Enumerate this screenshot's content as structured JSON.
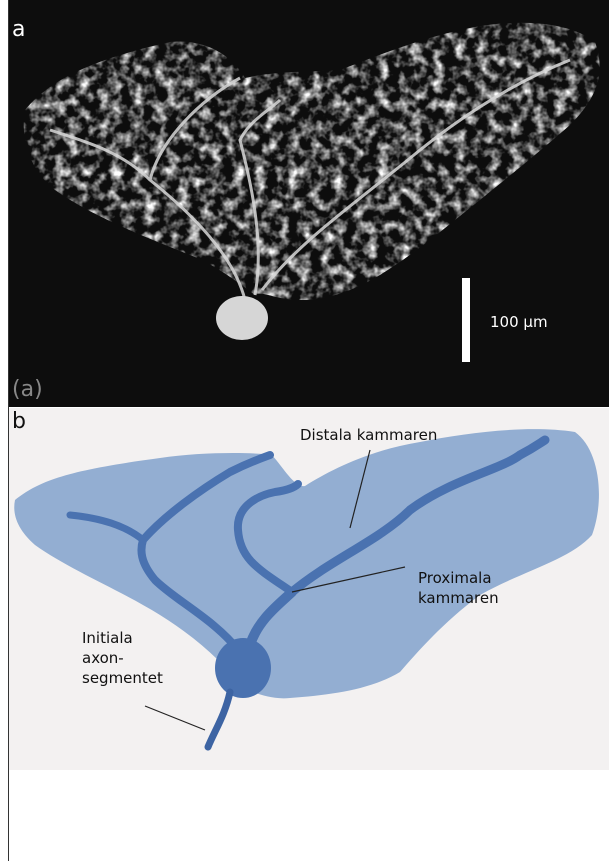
{
  "panel_a": {
    "label": "a",
    "scale_bar": "100 μm",
    "caption": "(a)"
  },
  "panel_b": {
    "label": "b",
    "annotations": [
      {
        "lines": [
          "Distala kammaren"
        ]
      },
      {
        "lines": [
          "Proximala",
          "kammaren"
        ]
      },
      {
        "lines": [
          "Initiala",
          "axon-",
          "segmentet"
        ]
      }
    ]
  }
}
